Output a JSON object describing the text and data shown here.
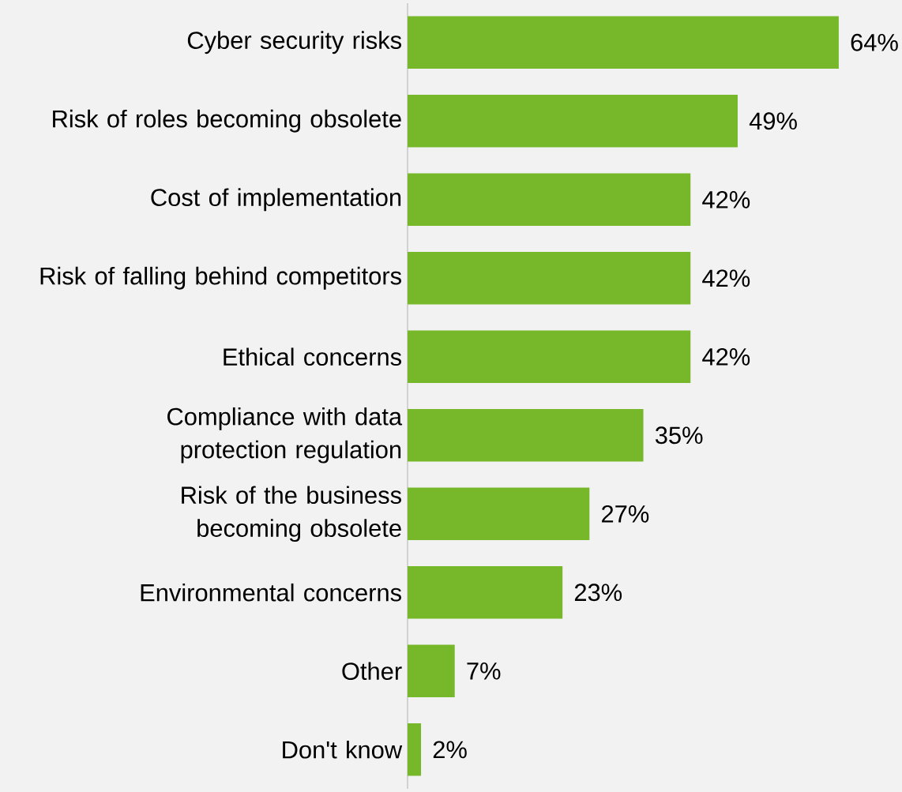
{
  "chart_data": {
    "type": "bar",
    "orientation": "horizontal",
    "categories": [
      "Cyber security risks",
      "Risk of roles becoming obsolete",
      "Cost of implementation",
      "Risk of falling behind competitors",
      "Ethical concerns",
      "Compliance with data protection regulation",
      "Risk of the business becoming obsolete",
      "Environmental concerns",
      "Other",
      "Don't know"
    ],
    "values": [
      64,
      49,
      42,
      42,
      42,
      35,
      27,
      23,
      7,
      2
    ],
    "value_labels": [
      "64%",
      "49%",
      "42%",
      "42%",
      "42%",
      "35%",
      "27%",
      "23%",
      "7%",
      "2%"
    ],
    "color": "#76b82a",
    "xlim": [
      0,
      64
    ],
    "tick_labels": "y"
  }
}
